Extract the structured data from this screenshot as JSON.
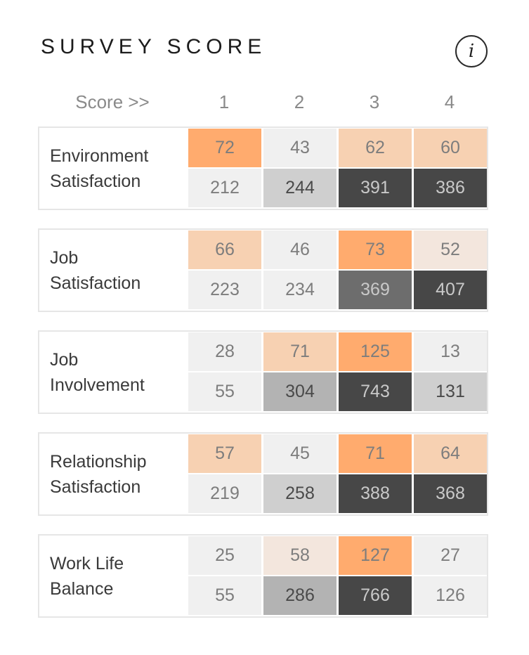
{
  "header": {
    "title": "SURVEY SCORE",
    "info_icon_label": "i"
  },
  "chart_data": {
    "type": "heatmap",
    "title": "SURVEY SCORE",
    "xlabel": "Score >>",
    "categories": [
      "1",
      "2",
      "3",
      "4"
    ],
    "series": [
      {
        "name": "Environment Satisfaction",
        "label_lines": [
          "Environment",
          "Satisfaction"
        ],
        "top": [
          72,
          43,
          62,
          60
        ],
        "bottom": [
          212,
          244,
          391,
          386
        ]
      },
      {
        "name": "Job Satisfaction",
        "label_lines": [
          "Job",
          "Satisfaction"
        ],
        "top": [
          66,
          46,
          73,
          52
        ],
        "bottom": [
          223,
          234,
          369,
          407
        ]
      },
      {
        "name": "Job Involvement",
        "label_lines": [
          "Job",
          "Involvement"
        ],
        "top": [
          28,
          71,
          125,
          13
        ],
        "bottom": [
          55,
          304,
          743,
          131
        ]
      },
      {
        "name": "Relationship Satisfaction",
        "label_lines": [
          "Relationship",
          "Satisfaction"
        ],
        "top": [
          57,
          45,
          71,
          64
        ],
        "bottom": [
          219,
          258,
          388,
          368
        ]
      },
      {
        "name": "Work Life Balance",
        "label_lines": [
          "Work Life",
          "Balance"
        ],
        "top": [
          25,
          58,
          127,
          27
        ],
        "bottom": [
          55,
          286,
          766,
          126
        ]
      }
    ]
  },
  "colors": {
    "orange_scale": [
      "#f0f0f0",
      "#f3e6dd",
      "#f7d1b2",
      "#ffab6e"
    ],
    "gray_scale": [
      "#f0f0f0",
      "#dedede",
      "#cfcfcf",
      "#b3b3b3",
      "#6d6d6d",
      "#474747"
    ],
    "text_light": "#7d7d7d",
    "text_mid": "#4a4a4a",
    "text_dark": "#c9c9c9"
  }
}
